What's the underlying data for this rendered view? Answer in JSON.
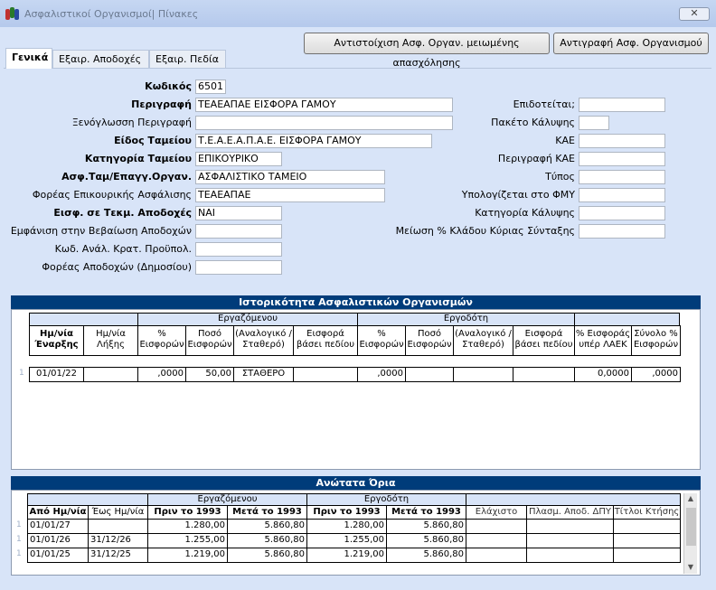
{
  "window": {
    "title": "Ασφαλιστικοί Οργανισμοί| Πίνακες",
    "close_label": "✕"
  },
  "toolbar": {
    "map_button": "Αντιστοίχιση Ασφ. Οργαν. μειωμένης απασχόλησης",
    "copy_button": "Αντιγραφή Ασφ. Οργανισμού"
  },
  "tabs": [
    "Γενικά",
    "Εξαιρ. Αποδοχές",
    "Εξαιρ. Πεδία"
  ],
  "form": {
    "left": [
      {
        "label": "Κωδικός",
        "value": "6501",
        "bold": true
      },
      {
        "label": "Περιγραφή",
        "value": "ΤΕΑΕΑΠΑΕ ΕΙΣΦΟΡΑ ΓΑΜΟΥ",
        "bold": true
      },
      {
        "label": "Ξενόγλωσση Περιγραφή",
        "value": "",
        "bold": false
      },
      {
        "label": "Είδος Ταμείου",
        "value": "Τ.Ε.Α.Ε.Α.Π.Α.Ε. ΕΙΣΦΟΡΑ ΓΑΜΟΥ",
        "bold": true
      },
      {
        "label": "Κατηγορία Ταμείου",
        "value": "ΕΠΙΚΟΥΡΙΚΟ",
        "bold": true
      },
      {
        "label": "Ασφ.Ταμ/Επαγγ.Οργαν.",
        "value": "ΑΣΦΑΛΙΣΤΙΚΟ ΤΑΜΕΙΟ",
        "bold": true
      },
      {
        "label": "Φορέας Επικουρικής Ασφάλισης",
        "value": "ΤΕΑΕΑΠΑΕ",
        "bold": false
      },
      {
        "label": "Εισφ. σε Τεκμ. Αποδοχές",
        "value": "ΝΑΙ",
        "bold": true
      },
      {
        "label": "Εμφάνιση στην Βεβαίωση Αποδοχών",
        "value": "",
        "bold": false
      },
      {
        "label": "Κωδ. Ανάλ. Κρατ. Προϋπολ.",
        "value": "",
        "bold": false
      },
      {
        "label": "Φορέας Αποδοχών (Δημοσίου)",
        "value": "",
        "bold": false
      }
    ],
    "right": [
      {
        "label": "Επιδοτείται;",
        "value": ""
      },
      {
        "label": "Πακέτο Κάλυψης",
        "value": ""
      },
      {
        "label": "ΚΑΕ",
        "value": ""
      },
      {
        "label": "Περιγραφή ΚΑΕ",
        "value": ""
      },
      {
        "label": "Τύπος",
        "value": ""
      },
      {
        "label": "Υπολογίζεται στο ΦΜΥ",
        "value": ""
      },
      {
        "label": "Κατηγορία Κάλυψης",
        "value": ""
      },
      {
        "label": "Μείωση % Κλάδου Κύριας Σύνταξης",
        "value": ""
      }
    ]
  },
  "history": {
    "title": "Ιστορικότητα Ασφαλιστικών Οργανισμών",
    "group_employee": "Εργαζόμενου",
    "group_employer": "Εργοδότη",
    "headers": [
      "Ημ/νία Έναρξης",
      "Ημ/νία Λήξης",
      "% Εισφορών",
      "Ποσό Εισφορών",
      "(Αναλογικό / Σταθερό)",
      "Εισφορά βάσει πεδίου",
      "% Εισφορών",
      "Ποσό Εισφορών",
      "(Αναλογικό / Σταθερό)",
      "Εισφορά βάσει πεδίου",
      "% Εισφοράς υπέρ ΛΑΕΚ",
      "Σύνολο % Εισφορών"
    ],
    "rows": [
      [
        "01/01/22",
        "",
        ",0000",
        "50,00",
        "ΣΤΑΘΕΡΟ",
        "",
        ",0000",
        "",
        "",
        "",
        "0,0000",
        ",0000"
      ]
    ]
  },
  "limits": {
    "title": "Ανώτατα Όρια",
    "group_employee": "Εργαζόμενου",
    "group_employer": "Εργοδότη",
    "headers": [
      "Από Ημ/νία",
      "Έως Ημ/νία",
      "Πριν το 1993",
      "Μετά το 1993",
      "Πριν το 1993",
      "Μετά το 1993",
      "Ελάχιστο",
      "Πλασμ. Αποδ. ΔΠΥ",
      "Τίτλοι Κτήσης"
    ],
    "rows": [
      [
        "01/01/27",
        "",
        "1.280,00",
        "5.860,80",
        "1.280,00",
        "5.860,80",
        "",
        "",
        ""
      ],
      [
        "01/01/26",
        "31/12/26",
        "1.255,00",
        "5.860,80",
        "1.255,00",
        "5.860,80",
        "",
        "",
        ""
      ],
      [
        "01/01/25",
        "31/12/25",
        "1.219,00",
        "5.860,80",
        "1.219,00",
        "5.860,80",
        "",
        "",
        ""
      ]
    ]
  }
}
